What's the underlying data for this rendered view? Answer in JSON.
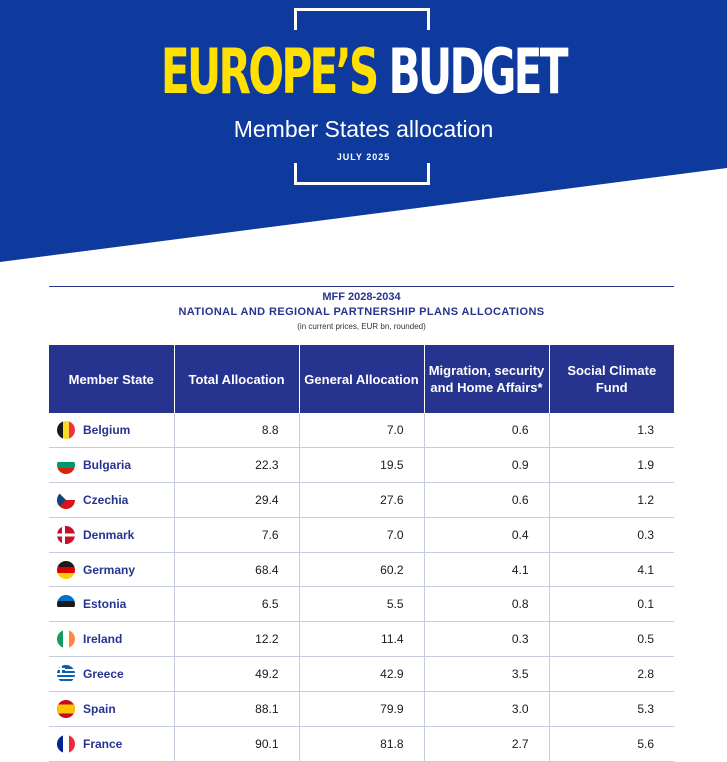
{
  "banner": {
    "title_part1": "EUROPE’S",
    "title_part2": "BUDGET",
    "subtitle": "Member States allocation",
    "date": "JULY 2025",
    "colors": {
      "blue": "#0e3a9e",
      "yellow": "#ffe000"
    }
  },
  "table_header": {
    "line1": "MFF 2028-2034",
    "line2": "NATIONAL AND REGIONAL PARTNERSHIP PLANS ALLOCATIONS",
    "line3": "(in current prices, EUR bn, rounded)"
  },
  "columns": [
    "Member State",
    "Total Allocation",
    "General Allocation",
    "Migration, security and Home Affairs*",
    "Social Climate Fund"
  ],
  "rows": [
    {
      "state": "Belgium",
      "flag": "belgium-flag-icon",
      "total": "8.8",
      "general": "7.0",
      "migration": "0.6",
      "climate": "1.3"
    },
    {
      "state": "Bulgaria",
      "flag": "bulgaria-flag-icon",
      "total": "22.3",
      "general": "19.5",
      "migration": "0.9",
      "climate": "1.9"
    },
    {
      "state": "Czechia",
      "flag": "czechia-flag-icon",
      "total": "29.4",
      "general": "27.6",
      "migration": "0.6",
      "climate": "1.2"
    },
    {
      "state": "Denmark",
      "flag": "denmark-flag-icon",
      "total": "7.6",
      "general": "7.0",
      "migration": "0.4",
      "climate": "0.3"
    },
    {
      "state": "Germany",
      "flag": "germany-flag-icon",
      "total": "68.4",
      "general": "60.2",
      "migration": "4.1",
      "climate": "4.1"
    },
    {
      "state": "Estonia",
      "flag": "estonia-flag-icon",
      "total": "6.5",
      "general": "5.5",
      "migration": "0.8",
      "climate": "0.1"
    },
    {
      "state": "Ireland",
      "flag": "ireland-flag-icon",
      "total": "12.2",
      "general": "11.4",
      "migration": "0.3",
      "climate": "0.5"
    },
    {
      "state": "Greece",
      "flag": "greece-flag-icon",
      "total": "49.2",
      "general": "42.9",
      "migration": "3.5",
      "climate": "2.8"
    },
    {
      "state": "Spain",
      "flag": "spain-flag-icon",
      "total": "88.1",
      "general": "79.9",
      "migration": "3.0",
      "climate": "5.3"
    },
    {
      "state": "France",
      "flag": "france-flag-icon",
      "total": "90.1",
      "general": "81.8",
      "migration": "2.7",
      "climate": "5.6"
    }
  ]
}
